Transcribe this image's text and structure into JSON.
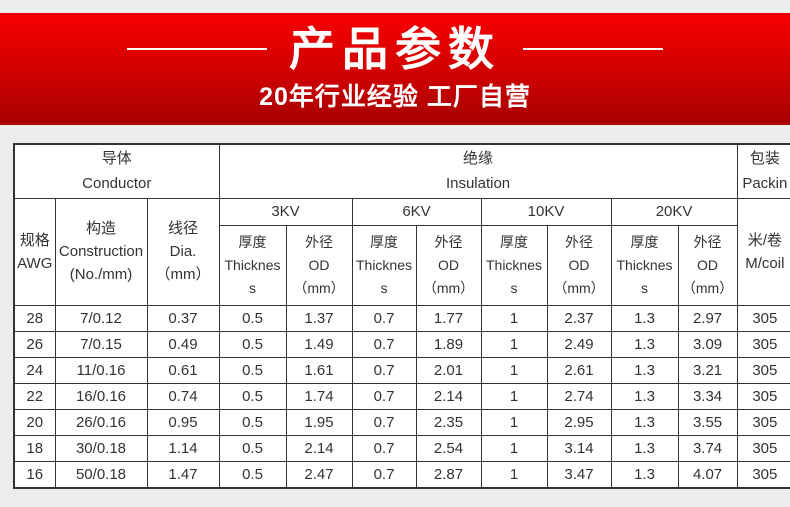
{
  "colors": {
    "page_bg": "#ededed",
    "banner_gradient_top": "#f60000",
    "banner_gradient_bottom": "#a60000",
    "banner_text": "#ffffff",
    "table_border": "#333333",
    "table_bg": "#ffffff",
    "table_text": "#333333"
  },
  "banner": {
    "title": "产品参数",
    "subtitle": "20年行业经验 工厂自营"
  },
  "table": {
    "header": {
      "conductor_zh": "导体",
      "conductor_en": "Conductor",
      "insulation_zh": "绝缘",
      "insulation_en": "Insulation",
      "packing_zh": "包装",
      "packing_en": "Packin",
      "awg_zh": "规格",
      "awg_en": "AWG",
      "construction_zh": "构造",
      "construction_en": "Construction",
      "construction_unit": "(No./mm)",
      "dia_zh": "线径",
      "dia_en": "Dia.",
      "dia_unit": "（mm）",
      "kv_levels": [
        "3KV",
        "6KV",
        "10KV",
        "20KV"
      ],
      "thickness_zh": "厚度",
      "thickness_en": "Thickness",
      "od_zh": "外径",
      "od_en": "OD",
      "od_unit": "（mm）",
      "mcoil_zh": "米/卷",
      "mcoil_en": "M/coil"
    },
    "rows": [
      [
        "28",
        "7/0.12",
        "0.37",
        "0.5",
        "1.37",
        "0.7",
        "1.77",
        "1",
        "2.37",
        "1.3",
        "2.97",
        "305"
      ],
      [
        "26",
        "7/0.15",
        "0.49",
        "0.5",
        "1.49",
        "0.7",
        "1.89",
        "1",
        "2.49",
        "1.3",
        "3.09",
        "305"
      ],
      [
        "24",
        "11/0.16",
        "0.61",
        "0.5",
        "1.61",
        "0.7",
        "2.01",
        "1",
        "2.61",
        "1.3",
        "3.21",
        "305"
      ],
      [
        "22",
        "16/0.16",
        "0.74",
        "0.5",
        "1.74",
        "0.7",
        "2.14",
        "1",
        "2.74",
        "1.3",
        "3.34",
        "305"
      ],
      [
        "20",
        "26/0.16",
        "0.95",
        "0.5",
        "1.95",
        "0.7",
        "2.35",
        "1",
        "2.95",
        "1.3",
        "3.55",
        "305"
      ],
      [
        "18",
        "30/0.18",
        "1.14",
        "0.5",
        "2.14",
        "0.7",
        "2.54",
        "1",
        "3.14",
        "1.3",
        "3.74",
        "305"
      ],
      [
        "16",
        "50/0.18",
        "1.47",
        "0.5",
        "2.47",
        "0.7",
        "2.87",
        "1",
        "3.47",
        "1.3",
        "4.07",
        "305"
      ]
    ]
  }
}
